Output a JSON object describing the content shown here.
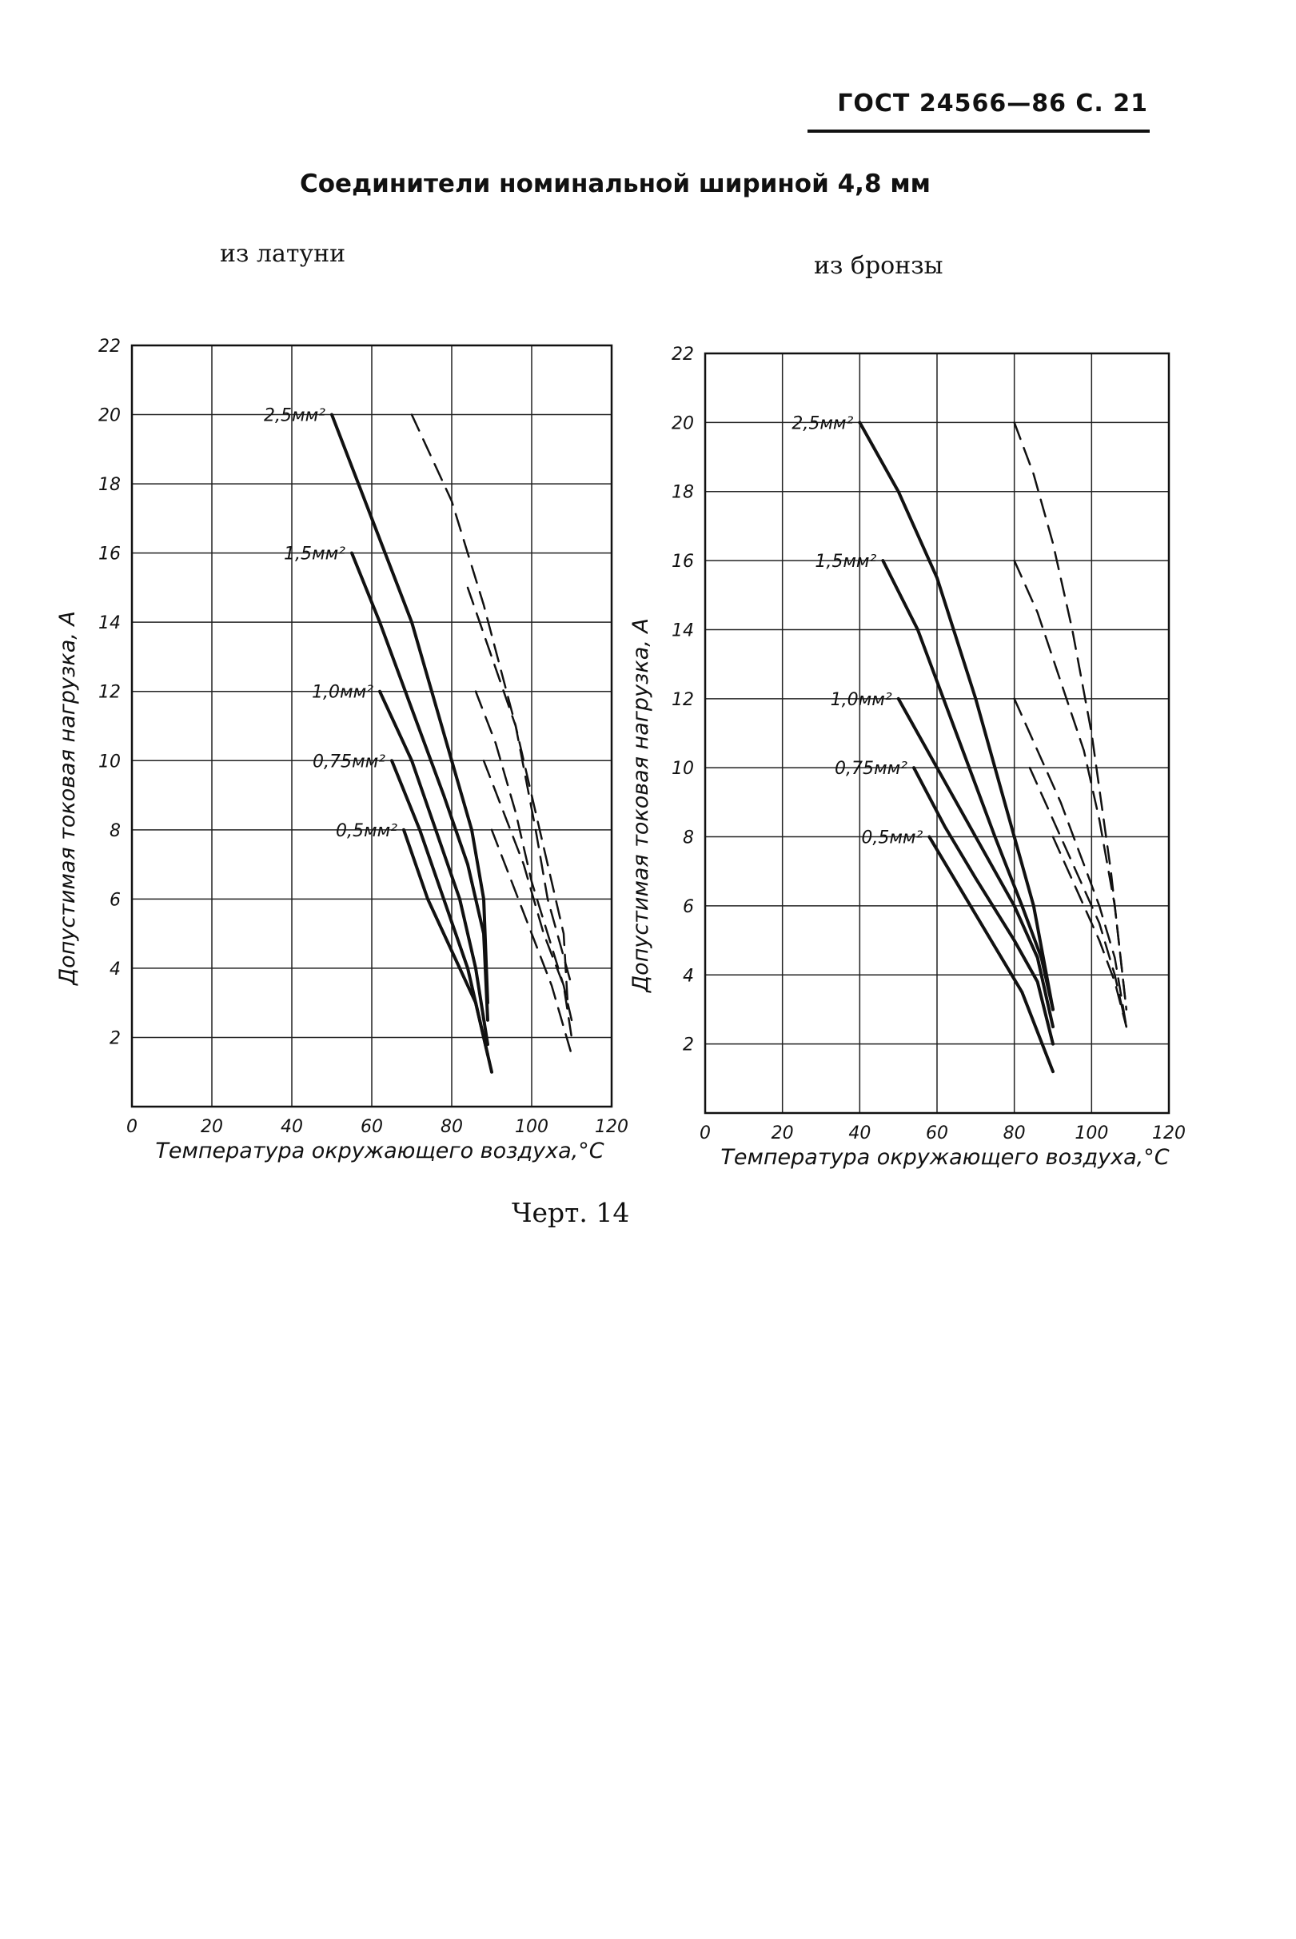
{
  "header": {
    "standard": "ГОСТ 24566—86 С. 21"
  },
  "title": "Соединители номинальной шириной 4,8 мм",
  "subtitles": {
    "left": "из латуни",
    "right": "из бронзы"
  },
  "caption": "Черт. 14",
  "chart_data": [
    {
      "type": "line",
      "title": "из латуни",
      "xlabel": "Температура окружающего воздуха,°С",
      "ylabel": "Допустимая токовая нагрузка, А",
      "xlim": [
        0,
        120
      ],
      "ylim": [
        0,
        22
      ],
      "xticks": [
        "0",
        "20",
        "40",
        "60",
        "80",
        "100",
        "120"
      ],
      "yticks": [
        "2",
        "4",
        "6",
        "8",
        "10",
        "12",
        "14",
        "16",
        "18",
        "20",
        "22"
      ],
      "grid": true,
      "series": [
        {
          "name": "2,5мм²",
          "style": "solid",
          "x": [
            50,
            60,
            70,
            80,
            85,
            88,
            89
          ],
          "y": [
            20,
            17,
            14,
            10,
            8,
            6,
            3
          ]
        },
        {
          "name": "1,5мм²",
          "style": "solid",
          "x": [
            55,
            62,
            70,
            78,
            84,
            88,
            89
          ],
          "y": [
            16,
            14,
            11.5,
            9,
            7,
            5,
            2.5
          ]
        },
        {
          "name": "1,0мм²",
          "style": "solid",
          "x": [
            62,
            70,
            76,
            82,
            86,
            89
          ],
          "y": [
            12,
            10,
            8,
            6,
            4,
            1.8
          ]
        },
        {
          "name": "0,75мм²",
          "style": "solid",
          "x": [
            65,
            72,
            78,
            84,
            89
          ],
          "y": [
            10,
            8,
            6,
            4,
            1.5
          ]
        },
        {
          "name": "0,5мм²",
          "style": "solid",
          "x": [
            68,
            74,
            80,
            86,
            90
          ],
          "y": [
            8,
            6,
            4.5,
            3,
            1
          ]
        },
        {
          "name": "",
          "style": "dashed",
          "x": [
            70,
            80,
            88,
            96,
            101,
            104,
            110
          ],
          "y": [
            20,
            17.5,
            14.5,
            11,
            8,
            6,
            3.5
          ]
        },
        {
          "name": "",
          "style": "dashed",
          "x": [
            84,
            90,
            96,
            100,
            104,
            108,
            109
          ],
          "y": [
            15,
            13,
            11,
            9,
            7,
            5,
            3
          ]
        },
        {
          "name": "",
          "style": "dashed",
          "x": [
            86,
            91,
            96,
            100,
            104,
            108,
            110
          ],
          "y": [
            12,
            10.5,
            8.5,
            6.5,
            5,
            3.5,
            2.5
          ]
        },
        {
          "name": "",
          "style": "dashed",
          "x": [
            88,
            93,
            98,
            103,
            108,
            110
          ],
          "y": [
            10,
            8.5,
            7,
            5,
            3.5,
            2
          ]
        },
        {
          "name": "",
          "style": "dashed",
          "x": [
            90,
            95,
            100,
            105,
            110
          ],
          "y": [
            8,
            6.5,
            5,
            3.5,
            1.5
          ]
        }
      ]
    },
    {
      "type": "line",
      "title": "из бронзы",
      "xlabel": "Температура окружающего воздуха,°С",
      "ylabel": "Допустимая токовая нагрузка, А",
      "xlim": [
        0,
        120
      ],
      "ylim": [
        0,
        22
      ],
      "xticks": [
        "0",
        "20",
        "40",
        "60",
        "80",
        "100",
        "120"
      ],
      "yticks": [
        "2",
        "4",
        "6",
        "8",
        "10",
        "12",
        "14",
        "16",
        "18",
        "20",
        "22"
      ],
      "grid": true,
      "series": [
        {
          "name": "2,5мм²",
          "style": "solid",
          "x": [
            40,
            50,
            60,
            70,
            80,
            85,
            90
          ],
          "y": [
            20,
            18,
            15.5,
            12,
            8,
            6,
            3
          ]
        },
        {
          "name": "1,5мм²",
          "style": "solid",
          "x": [
            46,
            55,
            65,
            75,
            82,
            87,
            90
          ],
          "y": [
            16,
            14,
            11,
            8,
            6,
            4.5,
            3
          ]
        },
        {
          "name": "1,0мм²",
          "style": "solid",
          "x": [
            50,
            60,
            70,
            80,
            86,
            90
          ],
          "y": [
            12,
            10,
            8,
            6,
            4.5,
            2.5
          ]
        },
        {
          "name": "0,75мм²",
          "style": "solid",
          "x": [
            54,
            62,
            70,
            80,
            86,
            90
          ],
          "y": [
            10,
            8.3,
            6.8,
            5,
            3.8,
            2
          ]
        },
        {
          "name": "0,5мм²",
          "style": "solid",
          "x": [
            58,
            66,
            74,
            82,
            90
          ],
          "y": [
            8,
            6.5,
            5,
            3.5,
            1.2
          ]
        },
        {
          "name": "",
          "style": "dashed",
          "x": [
            80,
            85,
            90,
            95,
            100,
            105,
            109
          ],
          "y": [
            20,
            18.5,
            16.5,
            14,
            11,
            7,
            3
          ]
        },
        {
          "name": "",
          "style": "dashed",
          "x": [
            80,
            86,
            92,
            98,
            102,
            106,
            109
          ],
          "y": [
            16,
            14.5,
            12.5,
            10.5,
            8.5,
            6,
            3
          ]
        },
        {
          "name": "",
          "style": "dashed",
          "x": [
            80,
            86,
            92,
            97,
            102,
            106,
            109
          ],
          "y": [
            12,
            10.5,
            9,
            7.5,
            6,
            4.5,
            2.5
          ]
        },
        {
          "name": "",
          "style": "dashed",
          "x": [
            84,
            90,
            96,
            102,
            106,
            109
          ],
          "y": [
            10,
            8.5,
            7,
            5.5,
            4,
            2.5
          ]
        },
        {
          "name": "",
          "style": "dashed",
          "x": [
            90,
            96,
            102,
            106,
            109
          ],
          "y": [
            8,
            6.5,
            5,
            3.8,
            2.5
          ]
        }
      ]
    }
  ]
}
